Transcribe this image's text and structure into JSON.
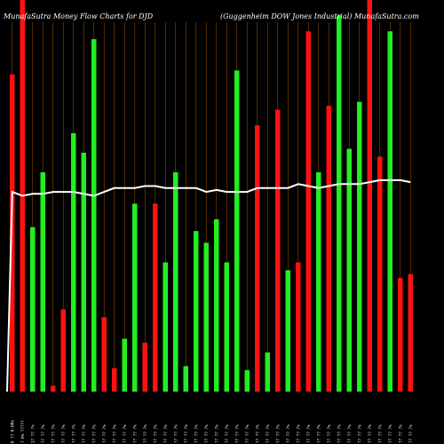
{
  "chart_data": {
    "type": "bar",
    "title_left": "MunafaSutra  Money Flow  Charts for DJD",
    "title_right": "(Guggenheim DOW Jones Industrial) MunafaSutra.com",
    "colors": {
      "up": "#22ee22",
      "down": "#ff1111",
      "line": "#ffffff",
      "grid": "#8a4a00",
      "background": "#000000"
    },
    "ylim": [
      0,
      100
    ],
    "bars": [
      {
        "value": 81,
        "color": "down"
      },
      {
        "value": 100,
        "color": "down"
      },
      {
        "value": 42,
        "color": "up"
      },
      {
        "value": 56,
        "color": "up"
      },
      {
        "value": 1.5,
        "color": "down"
      },
      {
        "value": 21,
        "color": "down"
      },
      {
        "value": 66,
        "color": "up"
      },
      {
        "value": 61,
        "color": "up"
      },
      {
        "value": 90,
        "color": "up"
      },
      {
        "value": 19,
        "color": "down"
      },
      {
        "value": 6,
        "color": "down"
      },
      {
        "value": 13.5,
        "color": "up"
      },
      {
        "value": 48,
        "color": "up"
      },
      {
        "value": 12.5,
        "color": "down"
      },
      {
        "value": 48,
        "color": "down"
      },
      {
        "value": 33,
        "color": "up"
      },
      {
        "value": 56,
        "color": "up"
      },
      {
        "value": 6.5,
        "color": "up"
      },
      {
        "value": 41,
        "color": "up"
      },
      {
        "value": 38,
        "color": "up"
      },
      {
        "value": 44,
        "color": "up"
      },
      {
        "value": 33,
        "color": "up"
      },
      {
        "value": 82,
        "color": "up"
      },
      {
        "value": 5.5,
        "color": "up"
      },
      {
        "value": 68,
        "color": "down"
      },
      {
        "value": 10,
        "color": "up"
      },
      {
        "value": 72,
        "color": "down"
      },
      {
        "value": 31,
        "color": "up"
      },
      {
        "value": 33,
        "color": "down"
      },
      {
        "value": 92,
        "color": "down"
      },
      {
        "value": 56,
        "color": "up"
      },
      {
        "value": 73,
        "color": "down"
      },
      {
        "value": 96,
        "color": "up"
      },
      {
        "value": 62,
        "color": "up"
      },
      {
        "value": 74,
        "color": "up"
      },
      {
        "value": 100,
        "color": "down"
      },
      {
        "value": 60,
        "color": "down"
      },
      {
        "value": 92,
        "color": "up"
      },
      {
        "value": 29,
        "color": "down"
      },
      {
        "value": 30,
        "color": "down"
      }
    ],
    "line": [
      51,
      50,
      50.5,
      50.5,
      51,
      51,
      51,
      50.5,
      50,
      51,
      52,
      52,
      52,
      52.5,
      52.5,
      52,
      52,
      52,
      52,
      51,
      51.5,
      51,
      51,
      51,
      52,
      52,
      52,
      52,
      53,
      52.5,
      52,
      52.5,
      53,
      53,
      53,
      53.5,
      54,
      54,
      54,
      53.5
    ],
    "x_labels": [
      "0 ?? 0.00%",
      "? 0% ?????",
      "2? ?? ?%",
      "?? ?? ?%",
      "?? ?? ?%",
      "?? ?? ?%",
      "?? ?? ?%",
      "?? ?? ?%",
      "?? ?? ?%",
      "?? ?? ?%",
      "?? ?? ?%",
      "?? ?? ?%",
      "?? ?? ?%",
      "?? ?? ?%",
      "?? ?? ?%",
      "?? ?? ?%",
      "?? ?? ?%",
      "?? ?? ?%",
      "?? ?? ?%",
      "?? ?? ?%",
      "?? ?? ?%",
      "?? ?? ?%",
      "?? ?? ?%",
      "?? ?? ?%",
      "?? ?? ?%",
      "?? ?? ?%",
      "?? ?? ?%",
      "?? ?? ?%",
      "?? ?? ?%",
      "?? ?? ?%",
      "?? ?? ?%",
      "?? ?? ?%",
      "?? ?? ?%",
      "?? ?? ?%",
      "?? ?? ?%",
      "?? ?? ?%",
      "?? ?? ?%",
      "?? ?? ?%",
      "?? ?? ?%",
      "?? ?? ?%"
    ]
  }
}
